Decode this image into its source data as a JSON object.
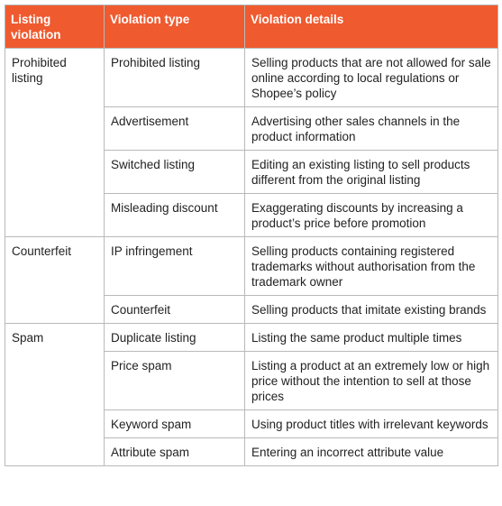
{
  "table": {
    "headers": [
      "Listing violation",
      "Violation type",
      "Violation details"
    ],
    "groups": [
      {
        "listing_violation": "Prohibited listing",
        "rows": [
          {
            "type": "Prohibited listing",
            "details": "Selling products that are not allowed for sale online according to local regulations or Shopee’s policy"
          },
          {
            "type": "Advertisement",
            "details": "Advertising other sales channels in the product information"
          },
          {
            "type": "Switched listing",
            "details": "Editing an existing listing to sell products different from the original listing"
          },
          {
            "type": "Misleading discount",
            "details": "Exaggerating discounts by increasing a product’s price before promotion"
          }
        ]
      },
      {
        "listing_violation": "Counterfeit",
        "rows": [
          {
            "type": "IP infringement",
            "details": "Selling products containing registered trademarks without authorisation from the trademark owner"
          },
          {
            "type": "Counterfeit",
            "details": "Selling products that imitate existing brands"
          }
        ]
      },
      {
        "listing_violation": "Spam",
        "rows": [
          {
            "type": "Duplicate listing",
            "details": "Listing the same product multiple times"
          },
          {
            "type": "Price spam",
            "details": "Listing a product at an extremely low or high price without the intention to sell at those prices"
          },
          {
            "type": "Keyword spam",
            "details": "Using product titles with irrelevant keywords"
          },
          {
            "type": "Attribute spam",
            "details": "Entering an incorrect attribute value"
          }
        ]
      }
    ]
  },
  "colors": {
    "header_background": "#ef5a2f",
    "header_text": "#ffffff",
    "border": "#b9b9b9",
    "body_text": "#222222"
  }
}
